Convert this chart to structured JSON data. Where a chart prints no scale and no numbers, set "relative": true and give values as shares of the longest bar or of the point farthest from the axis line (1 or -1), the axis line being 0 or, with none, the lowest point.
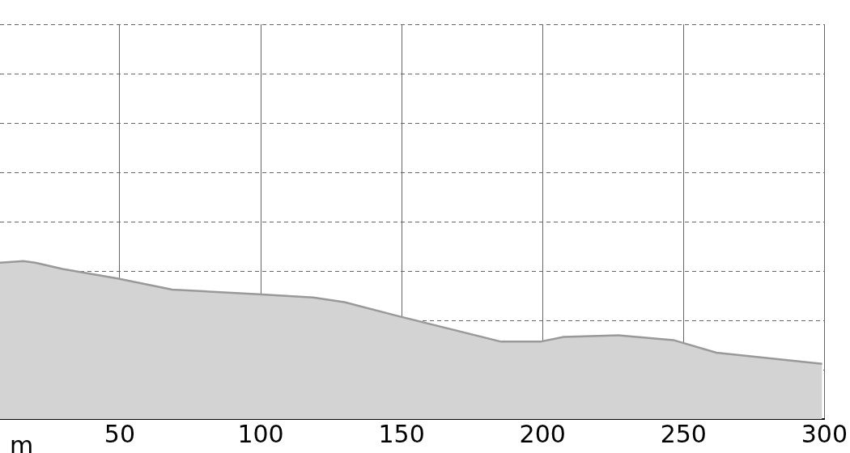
{
  "chart_data": {
    "type": "area",
    "xlabel": "m",
    "relative": true,
    "grid": true,
    "x": [
      7.5,
      15.8,
      20,
      29.7,
      49.2,
      68.6,
      99.2,
      118.6,
      129.7,
      149.2,
      185.3,
      199.2,
      207.5,
      226.9,
      246.4,
      261.7,
      299.2
    ],
    "series": [
      {
        "color": "#999999",
        "values": [
          0.99,
          1,
          0.99,
          0.95,
          0.89,
          0.82,
          0.79,
          0.77,
          0.74,
          0.65,
          0.49,
          0.49,
          0.52,
          0.53,
          0.5,
          0.42,
          0.35
        ]
      }
    ],
    "xlim": [
      7.5,
      300
    ],
    "xticks": [
      50,
      100,
      150,
      200,
      250,
      300
    ]
  }
}
